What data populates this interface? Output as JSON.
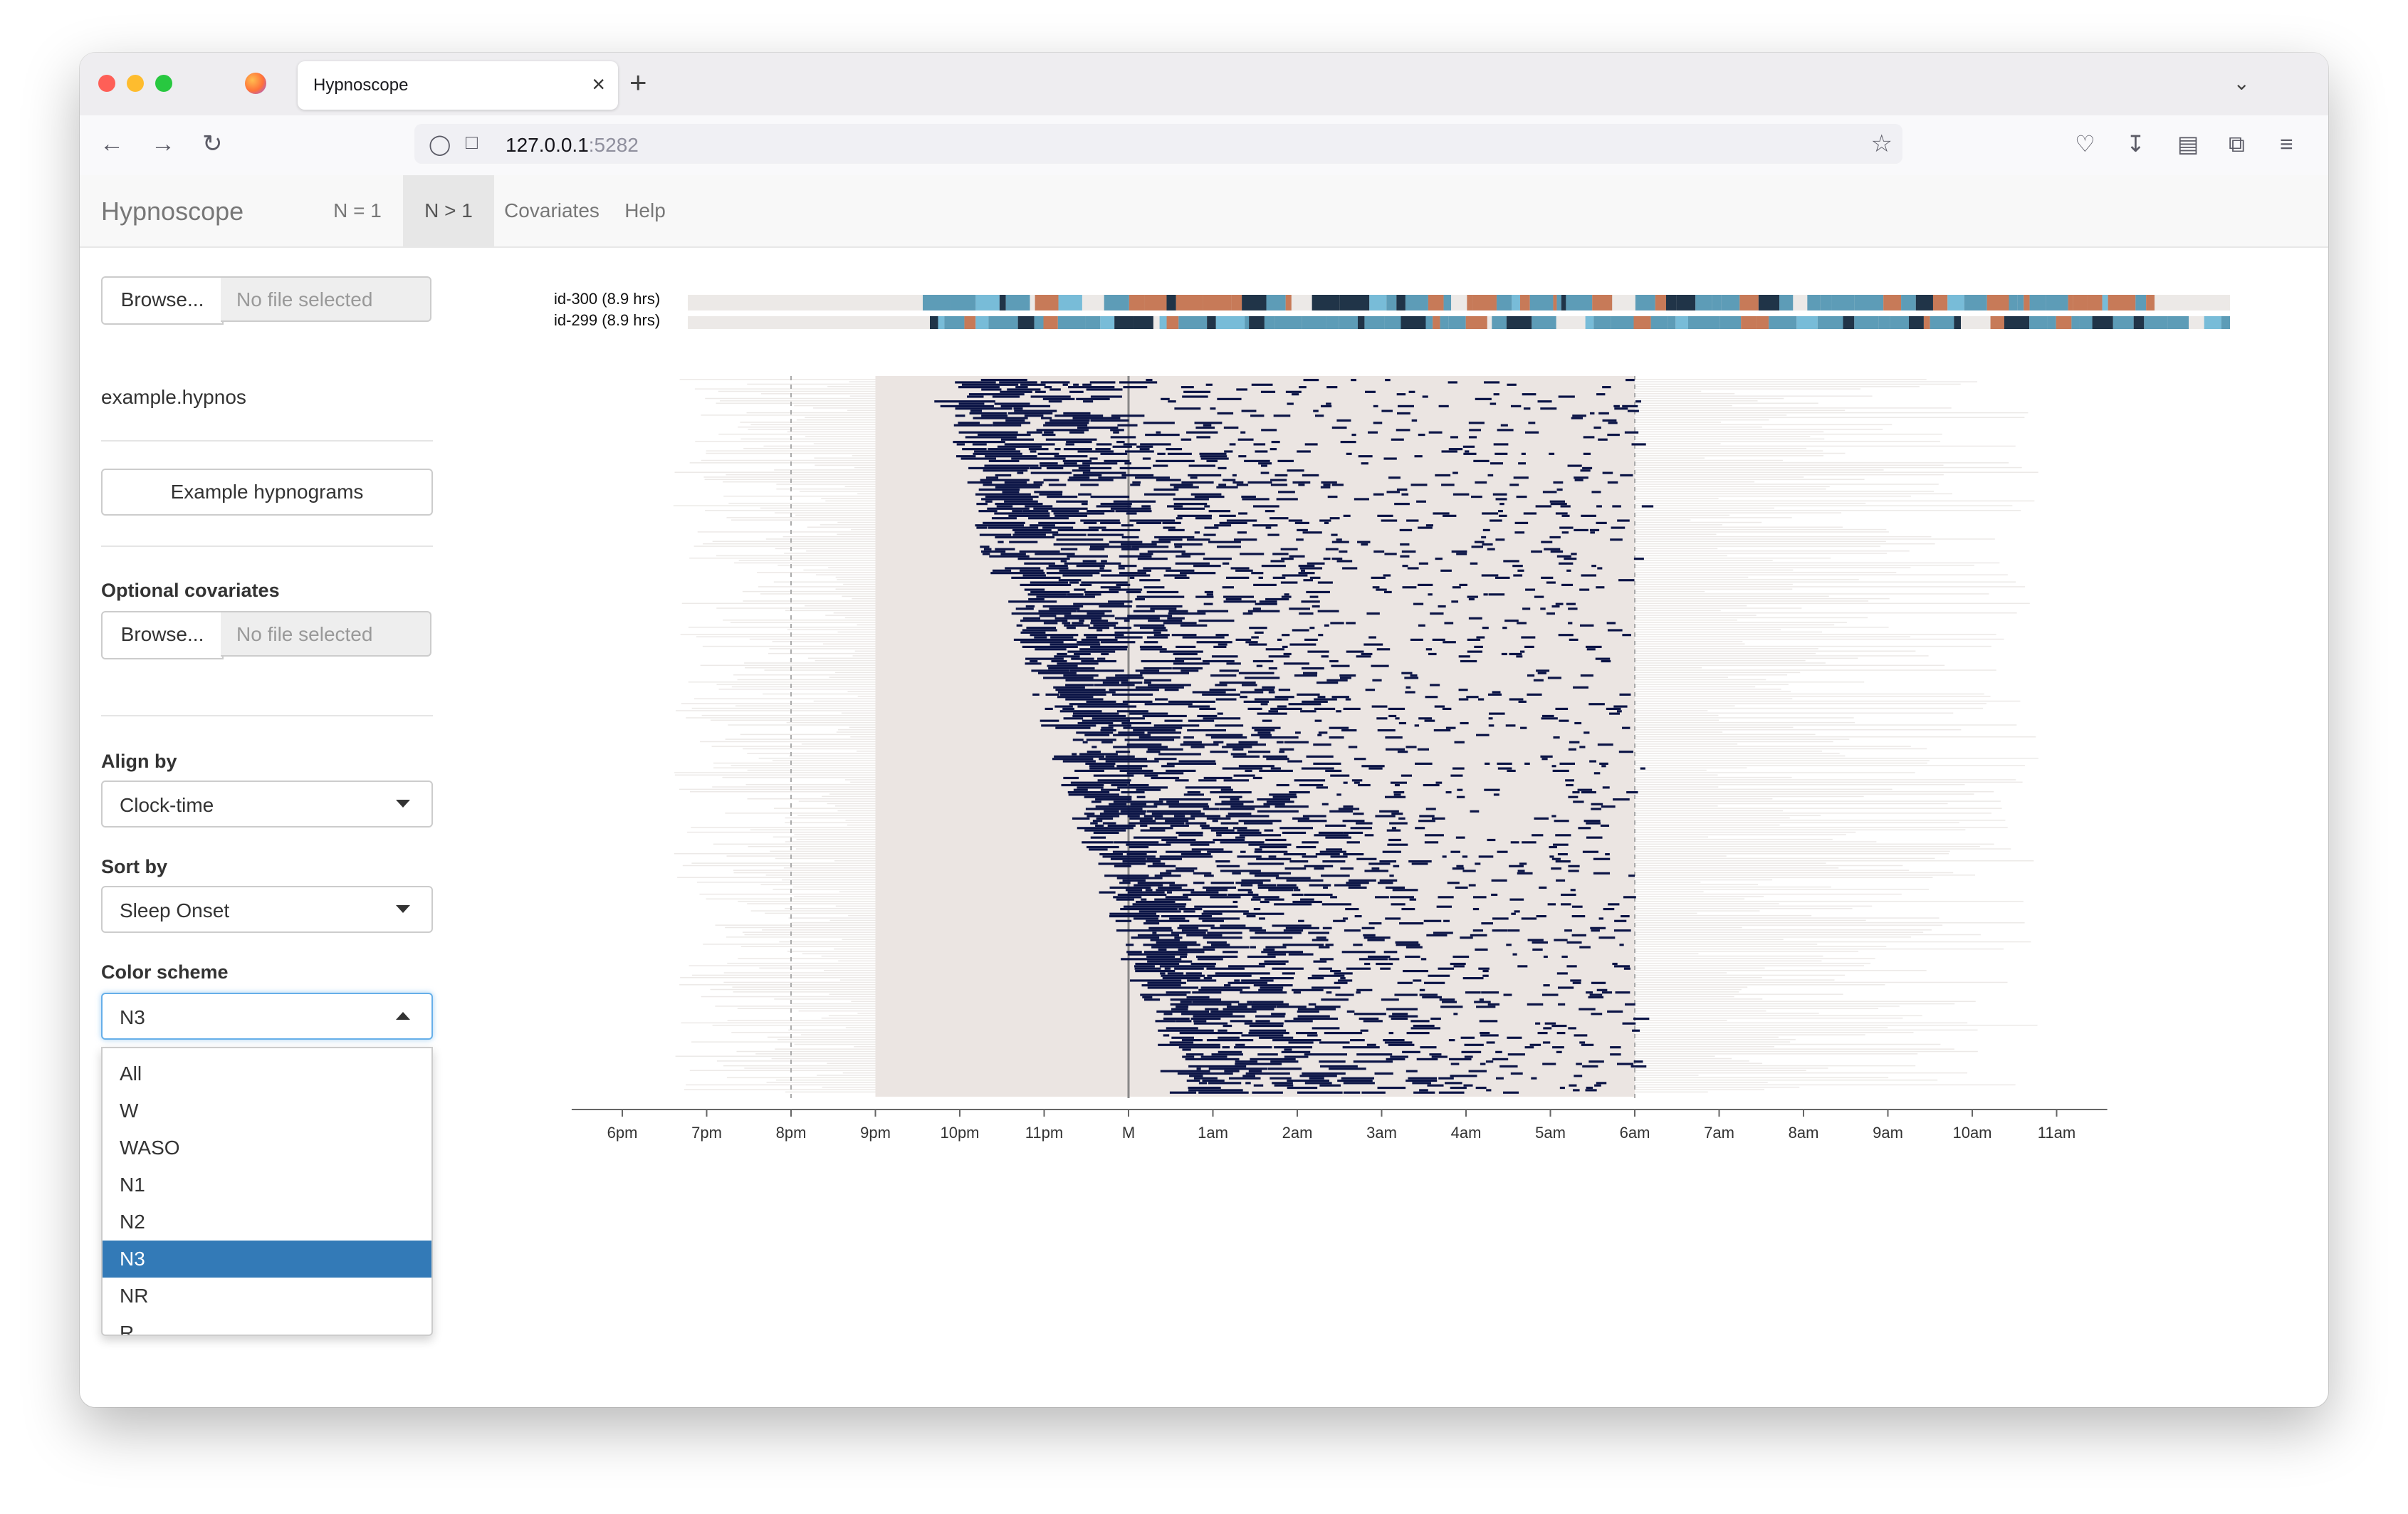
{
  "browser": {
    "tab_title": "Hypnoscope",
    "tab_close": "×",
    "new_tab": "+",
    "url_host": "127.0.0.1",
    "url_port": ":5282",
    "icons": [
      "back-icon",
      "forward-icon",
      "reload-icon",
      "shield-icon",
      "page-icon",
      "star-icon",
      "pocket-icon",
      "download-icon",
      "reader-icon",
      "extensions-icon",
      "menu-icon"
    ]
  },
  "app": {
    "brand": "Hypnoscope",
    "nav": [
      "N = 1",
      "N > 1",
      "Covariates",
      "Help"
    ],
    "active_nav": "N > 1"
  },
  "sidebar": {
    "browse_label": "Browse...",
    "no_file": "No file selected",
    "loaded_file": "example.hypnos",
    "example_button": "Example hypnograms",
    "covariates_label": "Optional covariates",
    "align_label": "Align by",
    "align_value": "Clock-time",
    "sort_label": "Sort by",
    "sort_value": "Sleep Onset",
    "color_label": "Color scheme",
    "color_value": "N3",
    "color_options": [
      "All",
      "W",
      "WASO",
      "N1",
      "N2",
      "N3",
      "NR",
      "R"
    ],
    "color_selected_index": 5
  },
  "chart_data": {
    "type": "heatmap",
    "x_ticks": [
      "6pm",
      "7pm",
      "8pm",
      "9pm",
      "10pm",
      "11pm",
      "M",
      "1am",
      "2am",
      "3am",
      "4am",
      "5am",
      "6am",
      "7am",
      "8am",
      "9am",
      "10am",
      "11am"
    ],
    "x_range_hours": [
      -6,
      11
    ],
    "reference_lines": [
      "8pm",
      "M",
      "6am"
    ],
    "highlighted_stage": "N3",
    "example_hypnograms": [
      {
        "label": "id-300 (8.9 hrs)"
      },
      {
        "label": "id-299 (8.9 hrs)"
      }
    ],
    "colors": {
      "background_band": "#ebe5e2",
      "highlight": "#0b1446",
      "wake": "#ece9e7",
      "n1": "#78bcd8",
      "n2": "#5d9cb7",
      "n3": "#203448",
      "rem": "#c77a58"
    },
    "n_rows_approx": 300,
    "sleep_onset_range": [
      "10pm",
      "1am"
    ],
    "band_start": "9pm",
    "band_end": "6am"
  }
}
